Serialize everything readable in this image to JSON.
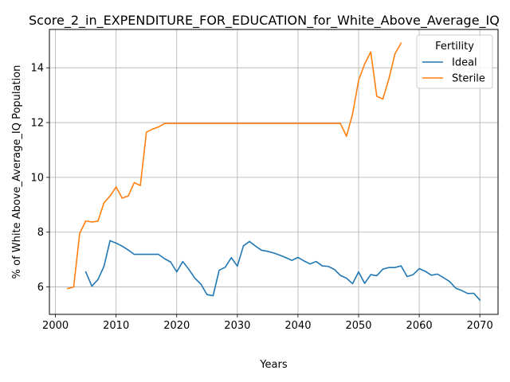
{
  "chart_data": {
    "type": "line",
    "title": "Score_2_in_EXPENDITURE_FOR_EDUCATION_for_White_Above_Average_IQ",
    "xlabel": "Years",
    "ylabel": "% of White Above_Average_IQ Population",
    "xlim": [
      1999,
      2073
    ],
    "ylim": [
      5.0,
      15.4
    ],
    "x_ticks": [
      2000,
      2010,
      2020,
      2030,
      2040,
      2050,
      2060,
      2070
    ],
    "y_ticks": [
      6,
      8,
      10,
      12,
      14
    ],
    "grid": true,
    "legend": {
      "title": "Fertility",
      "placement": "top-right"
    },
    "series": [
      {
        "name": "Ideal",
        "color": "#1f77b4",
        "x": [
          2005,
          2006,
          2007,
          2008,
          2009,
          2010,
          2011,
          2012,
          2013,
          2014,
          2015,
          2016,
          2017,
          2018,
          2019,
          2020,
          2021,
          2022,
          2023,
          2024,
          2025,
          2026,
          2027,
          2028,
          2029,
          2030,
          2031,
          2032,
          2033,
          2034,
          2035,
          2036,
          2037,
          2038,
          2039,
          2040,
          2041,
          2042,
          2043,
          2044,
          2045,
          2046,
          2047,
          2048,
          2049,
          2050,
          2051,
          2052,
          2053,
          2054,
          2055,
          2056,
          2057,
          2058,
          2059,
          2060,
          2061,
          2062,
          2063,
          2064,
          2065,
          2066,
          2067,
          2068,
          2069,
          2070
        ],
        "values": [
          6.55,
          6.03,
          6.27,
          6.75,
          7.69,
          7.6,
          7.49,
          7.35,
          7.19,
          7.19,
          7.19,
          7.19,
          7.19,
          7.03,
          6.91,
          6.55,
          6.93,
          6.64,
          6.32,
          6.1,
          5.72,
          5.68,
          6.61,
          6.72,
          7.07,
          6.76,
          7.5,
          7.66,
          7.49,
          7.34,
          7.3,
          7.24,
          7.16,
          7.07,
          6.97,
          7.08,
          6.95,
          6.84,
          6.93,
          6.77,
          6.75,
          6.64,
          6.42,
          6.32,
          6.12,
          6.55,
          6.13,
          6.45,
          6.41,
          6.65,
          6.71,
          6.71,
          6.77,
          6.38,
          6.45,
          6.67,
          6.57,
          6.43,
          6.47,
          6.34,
          6.2,
          5.96,
          5.87,
          5.76,
          5.77,
          5.52
        ]
      },
      {
        "name": "Sterile",
        "color": "#ff7f0e",
        "x": [
          2002,
          2003,
          2004,
          2005,
          2006,
          2007,
          2008,
          2009,
          2010,
          2011,
          2012,
          2013,
          2014,
          2015,
          2016,
          2017,
          2018,
          2019,
          2020,
          2021,
          2022,
          2023,
          2024,
          2025,
          2026,
          2027,
          2028,
          2029,
          2030,
          2031,
          2032,
          2033,
          2034,
          2035,
          2036,
          2037,
          2038,
          2039,
          2040,
          2041,
          2042,
          2043,
          2044,
          2045,
          2046,
          2047,
          2048,
          2049,
          2050,
          2051,
          2052,
          2053,
          2054,
          2055,
          2056,
          2057
        ],
        "values": [
          5.94,
          6.0,
          7.96,
          8.41,
          8.37,
          8.4,
          9.07,
          9.32,
          9.65,
          9.24,
          9.32,
          9.81,
          9.7,
          11.65,
          11.76,
          11.84,
          11.97,
          11.97,
          11.97,
          11.97,
          11.97,
          11.97,
          11.97,
          11.97,
          11.97,
          11.97,
          11.97,
          11.97,
          11.97,
          11.97,
          11.97,
          11.97,
          11.97,
          11.97,
          11.97,
          11.97,
          11.97,
          11.97,
          11.97,
          11.97,
          11.97,
          11.97,
          11.97,
          11.97,
          11.97,
          11.97,
          11.5,
          12.31,
          13.54,
          14.14,
          14.58,
          12.96,
          12.86,
          13.6,
          14.51,
          14.9
        ]
      }
    ]
  }
}
